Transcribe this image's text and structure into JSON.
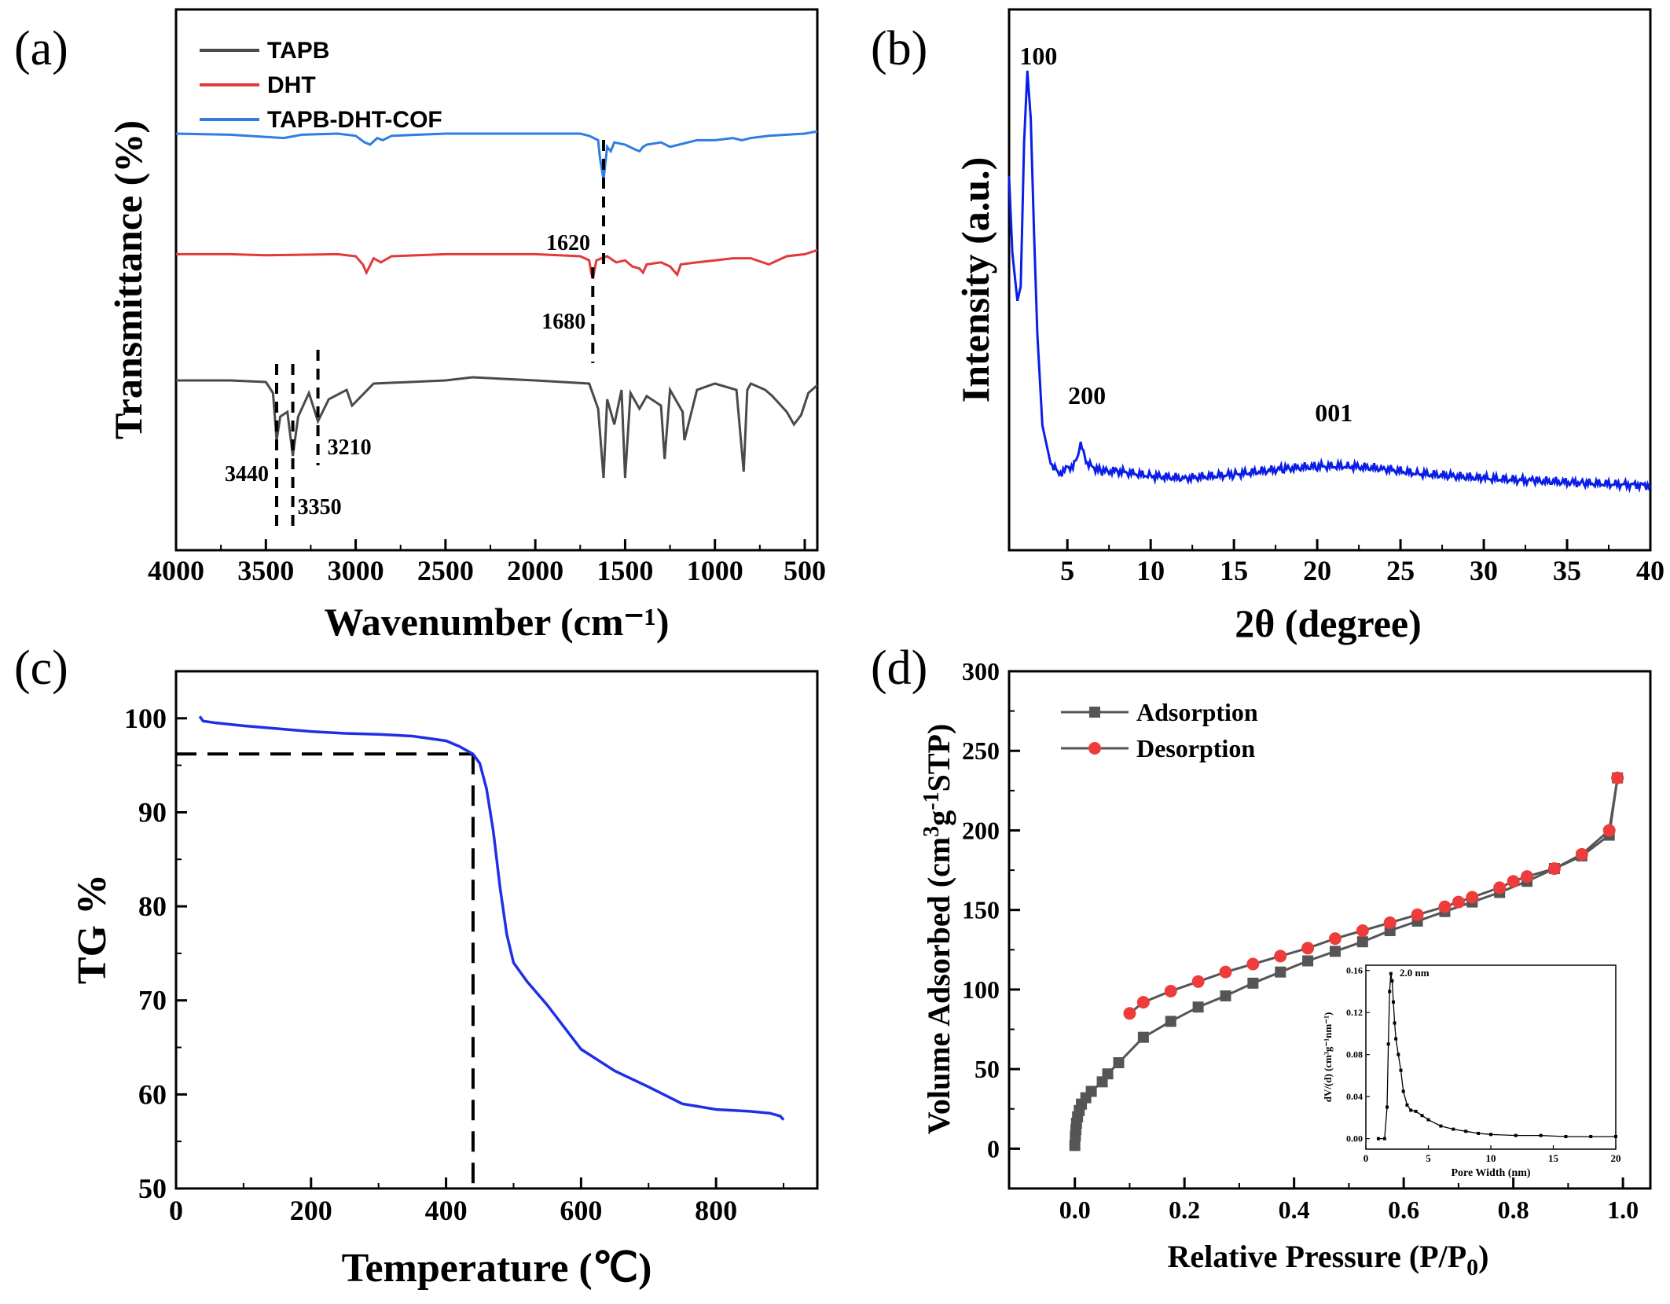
{
  "colors": {
    "tapb": "#4a4a4a",
    "dht": "#e03a3a",
    "cof": "#2f7de1",
    "xrd": "#0a1ee8",
    "tg": "#1f2fe6",
    "ads": "#555555",
    "des": "#ee3b3b",
    "axis": "#000000"
  },
  "panels": {
    "a": {
      "label": "(a)",
      "xlabel": "Wavenumber (cm⁻¹)",
      "ylabel": "Transmittance (%)",
      "ticks": [
        "4000",
        "3500",
        "3000",
        "2500",
        "2000",
        "1500",
        "1000",
        "500"
      ],
      "legend": [
        "TAPB",
        "DHT",
        "TAPB-DHT-COF"
      ],
      "annotations": [
        "1620",
        "1680",
        "3440",
        "3350",
        "3210"
      ]
    },
    "b": {
      "label": "(b)",
      "xlabel": "2θ (degree)",
      "ylabel": "Intensity (a.u.)",
      "ticks": [
        "5",
        "10",
        "15",
        "20",
        "25",
        "30",
        "35",
        "40"
      ],
      "peaks": [
        "100",
        "200",
        "001"
      ]
    },
    "c": {
      "label": "(c)",
      "xlabel": "Temperature (℃)",
      "ylabel": "TG %",
      "xticks": [
        "0",
        "200",
        "400",
        "600",
        "800"
      ],
      "yticks": [
        "50",
        "60",
        "70",
        "80",
        "90",
        "100"
      ]
    },
    "d": {
      "label": "(d)",
      "xlabel_main": "Relative Pressure (P/P",
      "xlabel_sub": "0",
      "xlabel_end": ")",
      "ylabel_a": "Volume Adsorbed (cm",
      "ylabel_sup1": "3",
      "ylabel_b": "g",
      "ylabel_sup2": "-1",
      "ylabel_c": "STP)",
      "xticks": [
        "0.0",
        "0.2",
        "0.4",
        "0.6",
        "0.8",
        "1.0"
      ],
      "yticks": [
        "0",
        "50",
        "100",
        "150",
        "200",
        "250",
        "300"
      ],
      "legend": [
        "Adsorption",
        "Desorption"
      ],
      "inset": {
        "annotation": "2.0 nm",
        "xlabel": "Pore Width (nm)",
        "ylabel": "dV/(d) (cm³g⁻¹nm⁻¹)",
        "xticks": [
          "0",
          "5",
          "10",
          "15",
          "20"
        ],
        "yticks": [
          "0.00",
          "0.04",
          "0.08",
          "0.12",
          "0.16"
        ]
      }
    }
  },
  "chart_data": [
    {
      "type": "line",
      "title": "",
      "xlabel": "Wavenumber (cm⁻¹)",
      "ylabel": "Transmittance (%)",
      "xlim": [
        4000,
        430
      ],
      "x_reversed": true,
      "y_ticks_shown": false,
      "legend_position": "top-left",
      "series": [
        {
          "name": "TAPB",
          "color": "#4a4a4a",
          "x": [
            4000,
            3700,
            3500,
            3460,
            3440,
            3420,
            3380,
            3350,
            3320,
            3260,
            3210,
            3150,
            3050,
            3020,
            2900,
            2500,
            2350,
            2000,
            1700,
            1650,
            1620,
            1600,
            1560,
            1520,
            1500,
            1470,
            1420,
            1380,
            1300,
            1280,
            1250,
            1180,
            1170,
            1100,
            1000,
            880,
            840,
            820,
            800,
            720,
            680,
            600,
            560,
            520,
            480,
            430
          ],
          "y": [
            0.78,
            0.78,
            0.77,
            0.7,
            0.4,
            0.55,
            0.58,
            0.3,
            0.55,
            0.7,
            0.52,
            0.66,
            0.72,
            0.62,
            0.76,
            0.78,
            0.8,
            0.78,
            0.76,
            0.6,
            0.16,
            0.66,
            0.5,
            0.72,
            0.16,
            0.7,
            0.6,
            0.68,
            0.62,
            0.28,
            0.72,
            0.58,
            0.4,
            0.72,
            0.76,
            0.72,
            0.2,
            0.72,
            0.76,
            0.72,
            0.68,
            0.58,
            0.5,
            0.56,
            0.7,
            0.75
          ]
        },
        {
          "name": "DHT",
          "color": "#e03a3a",
          "x": [
            4000,
            3700,
            3500,
            3100,
            3000,
            2960,
            2940,
            2900,
            2860,
            2800,
            2500,
            2000,
            1750,
            1700,
            1690,
            1680,
            1660,
            1600,
            1550,
            1500,
            1460,
            1420,
            1400,
            1380,
            1300,
            1250,
            1210,
            1190,
            1100,
            1000,
            900,
            800,
            700,
            600,
            500,
            430
          ],
          "y": [
            0.82,
            0.82,
            0.81,
            0.82,
            0.8,
            0.72,
            0.64,
            0.78,
            0.74,
            0.8,
            0.82,
            0.82,
            0.8,
            0.76,
            0.65,
            0.58,
            0.76,
            0.8,
            0.74,
            0.76,
            0.7,
            0.68,
            0.64,
            0.72,
            0.74,
            0.7,
            0.62,
            0.72,
            0.74,
            0.76,
            0.78,
            0.78,
            0.72,
            0.8,
            0.82,
            0.86
          ]
        },
        {
          "name": "TAPB-DHT-COF",
          "color": "#2f7de1",
          "x": [
            4000,
            3700,
            3400,
            3300,
            3100,
            3000,
            2950,
            2920,
            2880,
            2850,
            2800,
            2500,
            2000,
            1750,
            1700,
            1650,
            1640,
            1620,
            1600,
            1580,
            1560,
            1500,
            1450,
            1420,
            1400,
            1380,
            1300,
            1250,
            1200,
            1150,
            1100,
            1000,
            900,
            850,
            800,
            700,
            600,
            500,
            430
          ],
          "y": [
            1.0,
            0.99,
            0.96,
            0.99,
            1.0,
            0.98,
            0.92,
            0.9,
            0.96,
            0.94,
            0.98,
            1.0,
            1.0,
            1.0,
            0.98,
            0.94,
            0.78,
            0.58,
            0.88,
            0.84,
            0.92,
            0.9,
            0.86,
            0.84,
            0.88,
            0.9,
            0.92,
            0.88,
            0.9,
            0.92,
            0.94,
            0.94,
            0.96,
            0.94,
            0.96,
            0.98,
            0.99,
            1.0,
            1.02
          ]
        }
      ],
      "annotations": [
        {
          "text": "1620",
          "x": 1620
        },
        {
          "text": "1680",
          "x": 1680
        },
        {
          "text": "3440",
          "x": 3440
        },
        {
          "text": "3350",
          "x": 3350
        },
        {
          "text": "3210",
          "x": 3210
        }
      ]
    },
    {
      "type": "line",
      "title": "",
      "xlabel": "2θ (degree)",
      "ylabel": "Intensity (a.u.)",
      "xlim": [
        1.5,
        40
      ],
      "y_ticks_shown": false,
      "series": [
        {
          "name": "",
          "color": "#0a1ee8",
          "x": [
            1.5,
            1.7,
            2.0,
            2.2,
            2.4,
            2.6,
            2.8,
            3.0,
            3.2,
            3.5,
            4.0,
            4.5,
            5.0,
            5.5,
            5.8,
            6.2,
            7.0,
            8.0,
            10,
            12,
            15,
            18,
            20,
            22,
            24,
            26,
            28,
            30,
            33,
            36,
            40
          ],
          "y": [
            0.78,
            0.62,
            0.52,
            0.55,
            0.85,
            1.0,
            0.9,
            0.66,
            0.45,
            0.26,
            0.18,
            0.16,
            0.17,
            0.18,
            0.22,
            0.18,
            0.165,
            0.165,
            0.155,
            0.15,
            0.158,
            0.17,
            0.175,
            0.175,
            0.17,
            0.16,
            0.155,
            0.15,
            0.145,
            0.14,
            0.135
          ]
        }
      ],
      "peak_labels": [
        {
          "text": "100",
          "x": 2.7
        },
        {
          "text": "200",
          "x": 5.8
        },
        {
          "text": "001",
          "x": 21
        }
      ]
    },
    {
      "type": "line",
      "title": "",
      "xlabel": "Temperature (℃)",
      "ylabel": "TG %",
      "xlim": [
        0,
        950
      ],
      "ylim": [
        50,
        105
      ],
      "series": [
        {
          "name": "",
          "color": "#1f2fe6",
          "x": [
            35,
            40,
            60,
            100,
            150,
            200,
            250,
            300,
            350,
            400,
            420,
            440,
            450,
            460,
            470,
            480,
            490,
            500,
            520,
            550,
            600,
            650,
            700,
            750,
            800,
            850,
            880,
            895,
            900
          ],
          "y": [
            100.2,
            99.7,
            99.5,
            99.2,
            98.9,
            98.6,
            98.4,
            98.3,
            98.1,
            97.6,
            97.0,
            96.2,
            95.2,
            92.5,
            88.0,
            82.0,
            77.0,
            74.0,
            72.0,
            69.5,
            64.8,
            62.5,
            60.8,
            59.0,
            58.4,
            58.2,
            58.0,
            57.7,
            57.3
          ]
        }
      ],
      "reference_lines": [
        {
          "y": 96.2
        },
        {
          "x": 440
        }
      ]
    },
    {
      "type": "line",
      "title": "",
      "xlabel": "Relative Pressure (P/P0)",
      "ylabel": "Volume Adsorbed (cm3g-1STP)",
      "xlim": [
        -0.12,
        1.05
      ],
      "ylim": [
        -25,
        300
      ],
      "legend_position": "top-left",
      "series": [
        {
          "name": "Adsorption",
          "color": "#555555",
          "x": [
            0.0,
            0.001,
            0.002,
            0.003,
            0.005,
            0.008,
            0.012,
            0.02,
            0.03,
            0.05,
            0.06,
            0.08,
            0.125,
            0.175,
            0.225,
            0.275,
            0.325,
            0.375,
            0.425,
            0.475,
            0.525,
            0.575,
            0.625,
            0.675,
            0.725,
            0.775,
            0.825,
            0.875,
            0.925,
            0.975,
            0.99
          ],
          "y": [
            2,
            8,
            12,
            16,
            20,
            24,
            28,
            32,
            36,
            42,
            47,
            54,
            70,
            80,
            89,
            96,
            104,
            111,
            118,
            124,
            130,
            137,
            143,
            149,
            155,
            161,
            168,
            176,
            184,
            197,
            233
          ]
        },
        {
          "name": "Desorption",
          "color": "#ee3b3b",
          "x": [
            0.1,
            0.125,
            0.175,
            0.225,
            0.275,
            0.325,
            0.375,
            0.425,
            0.475,
            0.525,
            0.575,
            0.625,
            0.675,
            0.7,
            0.725,
            0.775,
            0.8,
            0.825,
            0.875,
            0.925,
            0.975,
            0.99
          ],
          "y": [
            85,
            92,
            99,
            105,
            111,
            116,
            121,
            126,
            132,
            137,
            142,
            147,
            152,
            155,
            158,
            164,
            168,
            171,
            176,
            185,
            200,
            233
          ]
        }
      ],
      "inset": {
        "type": "line",
        "xlabel": "Pore Width (nm)",
        "ylabel": "dV/(d) (cm³g⁻¹nm⁻¹)",
        "xlim": [
          0,
          20
        ],
        "ylim": [
          -0.01,
          0.165
        ],
        "series": [
          {
            "name": "",
            "color": "#000000",
            "x": [
              1.0,
              1.5,
              1.7,
              1.8,
              1.9,
              2.0,
              2.1,
              2.2,
              2.3,
              2.4,
              2.6,
              2.8,
              3.0,
              3.3,
              3.6,
              4.0,
              4.5,
              5.0,
              6.0,
              7.0,
              8.0,
              9.0,
              10,
              12,
              14,
              16,
              18,
              20
            ],
            "y": [
              0.0,
              0.0,
              0.03,
              0.09,
              0.14,
              0.157,
              0.15,
              0.13,
              0.11,
              0.095,
              0.08,
              0.065,
              0.045,
              0.032,
              0.027,
              0.026,
              0.022,
              0.018,
              0.012,
              0.009,
              0.007,
              0.005,
              0.004,
              0.003,
              0.003,
              0.002,
              0.002,
              0.002
            ]
          }
        ],
        "annotation": {
          "text": "2.0 nm",
          "x": 2.0
        }
      }
    }
  ]
}
